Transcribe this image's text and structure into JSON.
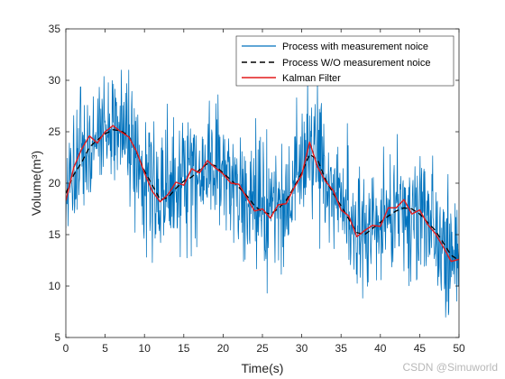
{
  "chart_data": {
    "type": "line",
    "xlabel": "Time(s)",
    "ylabel": "Volume(m³)",
    "xlim": [
      0,
      50
    ],
    "ylim": [
      5,
      35
    ],
    "x_ticks": [
      "0",
      "5",
      "10",
      "15",
      "20",
      "25",
      "30",
      "35",
      "40",
      "45",
      "50"
    ],
    "y_ticks": [
      "5",
      "10",
      "15",
      "20",
      "25",
      "30",
      "35"
    ],
    "grid": false,
    "legend_position": "top-right",
    "sampling_interval": 0.05,
    "series": [
      {
        "name": "Process with measurement noice",
        "style": "solid",
        "color": "#0072BD",
        "values": []
      },
      {
        "name": "Process W/O measurement noice",
        "style": "dashed",
        "color": "#000000",
        "x": [
          0,
          1,
          2,
          3,
          4,
          5,
          6,
          7,
          8,
          9,
          10,
          11,
          12,
          13,
          14,
          15,
          16,
          17,
          18,
          19,
          20,
          21,
          22,
          23,
          24,
          25,
          26,
          27,
          28,
          29,
          30,
          31,
          32,
          33,
          34,
          35,
          36,
          37,
          38,
          39,
          40,
          41,
          42,
          43,
          44,
          45,
          46,
          47,
          48,
          49,
          50
        ],
        "values": [
          19.0,
          20.8,
          22.0,
          23.5,
          24.2,
          24.8,
          25.2,
          25.1,
          24.6,
          23.0,
          21.2,
          19.8,
          18.4,
          18.6,
          19.5,
          20.2,
          20.6,
          21.3,
          21.9,
          21.7,
          21.0,
          20.3,
          19.6,
          18.8,
          17.8,
          17.2,
          17.0,
          17.5,
          18.3,
          19.6,
          21.0,
          22.8,
          22.3,
          20.4,
          19.0,
          17.8,
          16.5,
          15.2,
          15.0,
          15.6,
          16.2,
          16.8,
          17.3,
          17.6,
          17.5,
          17.0,
          16.2,
          15.4,
          14.2,
          13.0,
          12.5
        ]
      },
      {
        "name": "Kalman Filter",
        "style": "solid",
        "color": "#E41A1C",
        "x": [
          0,
          1,
          2,
          3,
          4,
          5,
          6,
          7,
          8,
          9,
          10,
          11,
          12,
          13,
          14,
          15,
          16,
          17,
          18,
          19,
          20,
          21,
          22,
          23,
          24,
          25,
          26,
          27,
          28,
          29,
          30,
          31,
          32,
          33,
          34,
          35,
          36,
          37,
          38,
          39,
          40,
          41,
          42,
          43,
          44,
          45,
          46,
          47,
          48,
          49,
          50
        ],
        "values": [
          18.3,
          21.5,
          23.3,
          24.6,
          23.9,
          25.0,
          25.6,
          25.0,
          24.5,
          23.1,
          21.0,
          19.2,
          18.2,
          18.9,
          20.1,
          19.8,
          21.4,
          21.0,
          22.2,
          21.5,
          20.9,
          20.0,
          19.9,
          18.6,
          17.3,
          17.5,
          16.6,
          17.9,
          18.0,
          19.5,
          20.8,
          24.0,
          21.6,
          20.2,
          19.3,
          17.4,
          16.8,
          14.8,
          15.4,
          15.9,
          15.8,
          17.6,
          17.6,
          18.4,
          17.0,
          17.4,
          16.0,
          15.1,
          13.8,
          12.4,
          12.6
        ]
      }
    ]
  },
  "watermark": "CSDN @Simuworld"
}
